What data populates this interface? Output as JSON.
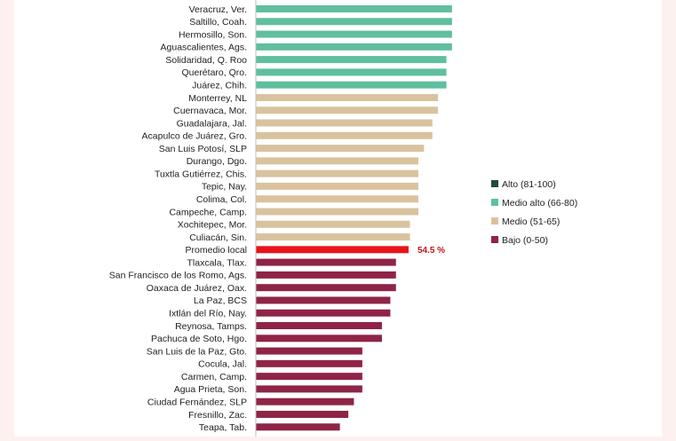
{
  "chart_data": {
    "type": "bar",
    "orientation": "horizontal",
    "categories": [
      "Veracruz, Ver.",
      "Saltillo, Coah.",
      "Hermosillo, Son.",
      "Aguascalientes, Ags.",
      "Solidaridad, Q. Roo",
      "Querétaro, Qro.",
      "Juárez, Chih.",
      "Monterrey, NL",
      "Cuernavaca, Mor.",
      "Guadalajara, Jal.",
      "Acapulco de Juárez, Gro.",
      "San Luis Potosí, SLP",
      "Durango, Dgo.",
      "Tuxtla Gutiérrez, Chis.",
      "Tepic, Nay.",
      "Colima, Col.",
      "Campeche, Camp.",
      "Xochitepec, Mor.",
      "Culiacán, Sin.",
      "Promedio local",
      "Tlaxcala, Tlax.",
      "San Francisco de los Romo, Ags.",
      "Oaxaca de Juárez, Oax.",
      "La Paz, BCS",
      "Ixtlán del Río, Nay.",
      "Reynosa, Tamps.",
      "Pachuca de Soto, Hgo.",
      "San Luis de la Paz, Gto.",
      "Cocula, Jal.",
      "Carmen, Camp.",
      "Agua Prieta, Son.",
      "Ciudad Fernández, SLP",
      "Fresnillo, Zac.",
      "Teapa, Tab."
    ],
    "values": [
      70,
      70,
      70,
      70,
      68,
      68,
      68,
      65,
      65,
      63,
      63,
      60,
      58,
      58,
      58,
      58,
      58,
      55,
      55,
      54.5,
      50,
      50,
      50,
      48,
      48,
      45,
      45,
      38,
      38,
      38,
      38,
      35,
      33,
      30
    ],
    "groups": [
      "medio_alto",
      "medio_alto",
      "medio_alto",
      "medio_alto",
      "medio_alto",
      "medio_alto",
      "medio_alto",
      "medio",
      "medio",
      "medio",
      "medio",
      "medio",
      "medio",
      "medio",
      "medio",
      "medio",
      "medio",
      "medio",
      "medio",
      "promedio",
      "bajo",
      "bajo",
      "bajo",
      "bajo",
      "bajo",
      "bajo",
      "bajo",
      "bajo",
      "bajo",
      "bajo",
      "bajo",
      "bajo",
      "bajo",
      "bajo"
    ],
    "data_labels": {
      "Promedio local": "54.5 %"
    },
    "xlim": [
      0,
      100
    ],
    "grid": false,
    "legend_position": "right",
    "legend": [
      {
        "key": "alto",
        "label": "Alto (81-100)",
        "color": "#1e4d3a"
      },
      {
        "key": "medio_alto",
        "label": "Medio alto (66-80)",
        "color": "#5fbf9e"
      },
      {
        "key": "medio",
        "label": "Medio (51-65)",
        "color": "#d9c39e"
      },
      {
        "key": "bajo",
        "label": "Bajo (0-50)",
        "color": "#8f2446"
      }
    ],
    "colors": {
      "alto": "#1e4d3a",
      "medio_alto": "#5fbf9e",
      "medio": "#d9c39e",
      "bajo": "#8f2446",
      "promedio": "#e8141a",
      "data_label": "#c0141a"
    }
  }
}
